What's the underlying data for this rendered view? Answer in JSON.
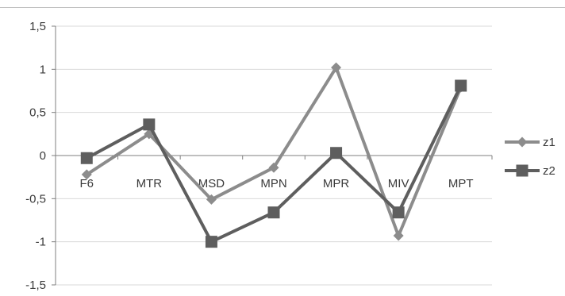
{
  "chart_data": {
    "type": "line",
    "categories": [
      "F6",
      "MTR",
      "MSD",
      "MPN",
      "MPR",
      "MIV",
      "MPT"
    ],
    "series": [
      {
        "name": "z1",
        "values": [
          -0.22,
          0.25,
          -0.51,
          -0.14,
          1.02,
          -0.93,
          0.79
        ],
        "marker": "diamond",
        "color": "#8c8c8c"
      },
      {
        "name": "z2",
        "values": [
          -0.03,
          0.36,
          -1.0,
          -0.66,
          0.03,
          -0.66,
          0.81
        ],
        "marker": "square",
        "color": "#5e5e5e"
      }
    ],
    "ylim": [
      -1.5,
      1.5
    ],
    "yticks": [
      1.5,
      1,
      0.5,
      0,
      -0.5,
      -1,
      -1.5
    ],
    "ytick_labels": [
      "1,5",
      "1",
      "0,5",
      "0",
      "-0,5",
      "-1",
      "-1,5"
    ],
    "grid": true,
    "legend_position": "right",
    "gridline_color": "#d9d9d9",
    "axis_color": "#7f7f7f"
  }
}
